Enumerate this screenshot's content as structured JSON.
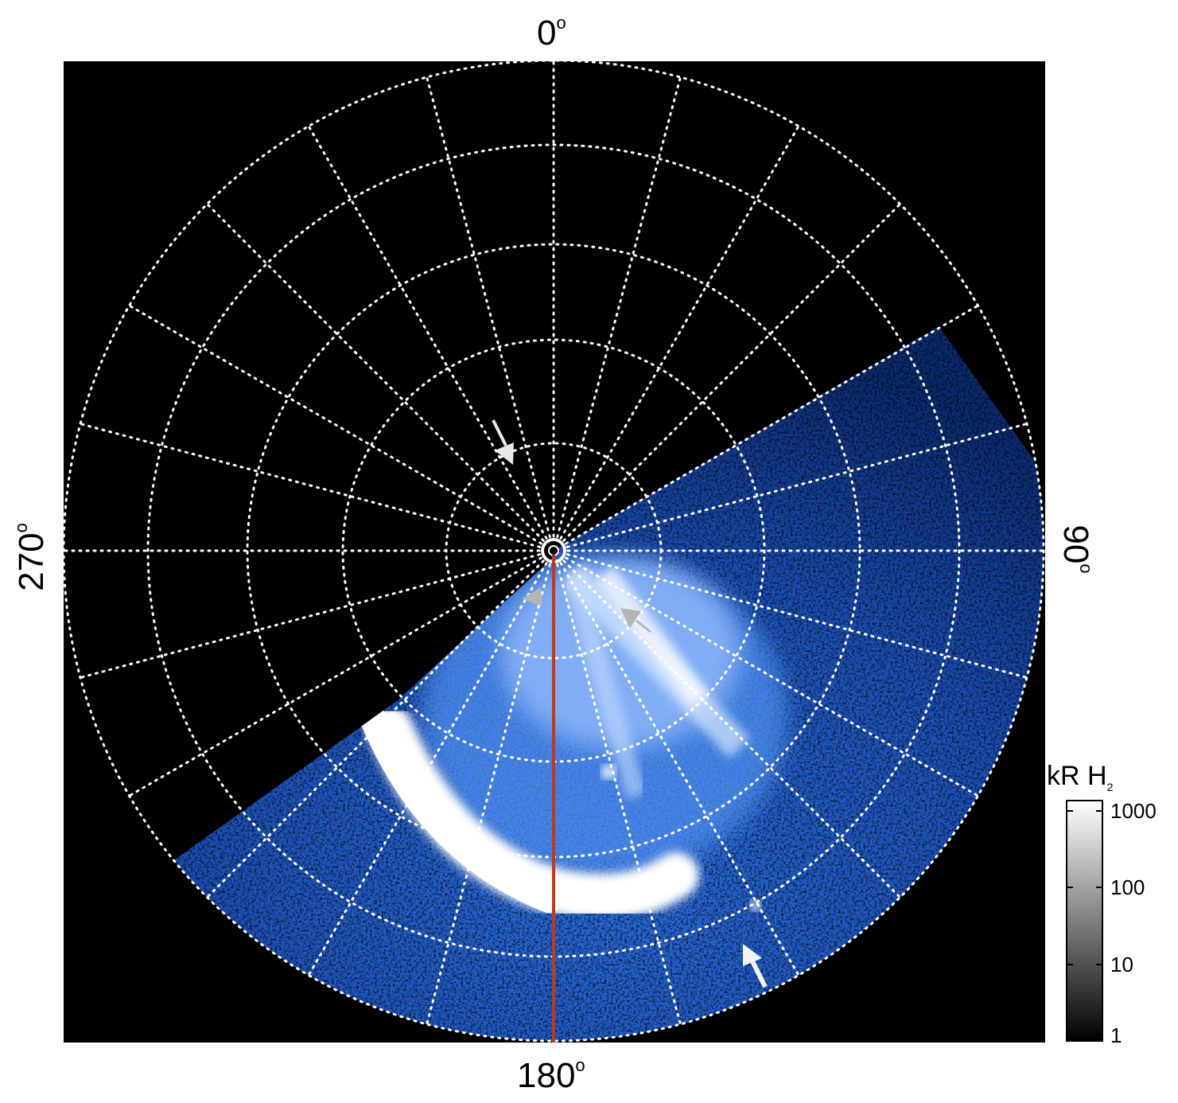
{
  "axis_labels": {
    "top": "0",
    "bottom": "180",
    "left": "270",
    "right": "90",
    "degree": "o"
  },
  "colorbar": {
    "unit_main": "kR H",
    "unit_sub": "2",
    "ticks": [
      "1000",
      "100",
      "10",
      "1"
    ]
  },
  "colors": {
    "background": "#000000",
    "grid": "#ffffff",
    "aurora_dim": "#1f5fd0",
    "aurora_bright": "#ffffff",
    "meridian_line": "#c0391b",
    "arrow_white": "#f2f2f2",
    "arrow_gray": "#b5b5b5"
  }
}
